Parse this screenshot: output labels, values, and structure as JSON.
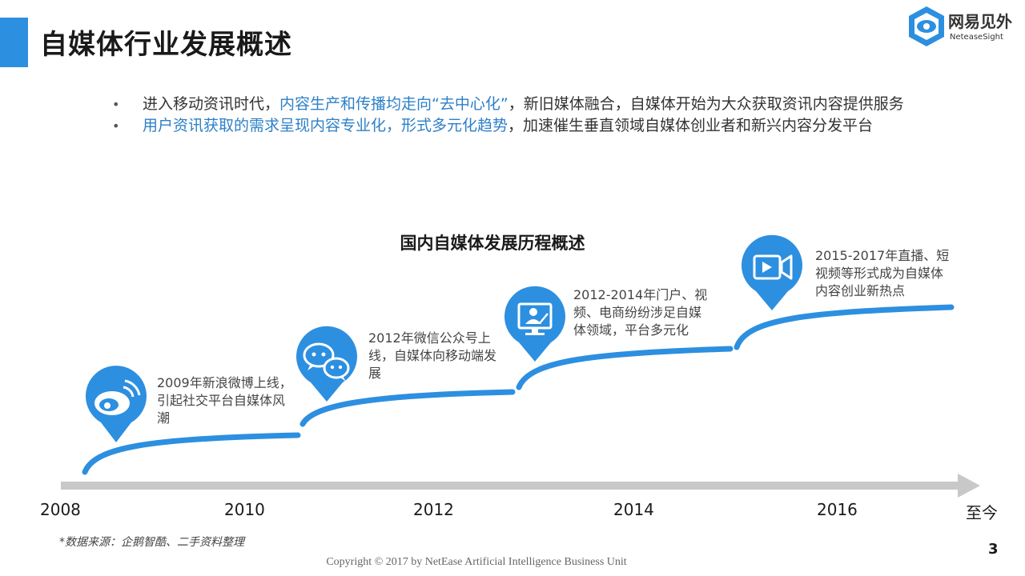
{
  "header": {
    "title": "自媒体行业发展概述",
    "logo_cn": "网易见外",
    "logo_en": "NeteaseSight"
  },
  "bullets": [
    {
      "dot": "•",
      "parts": [
        {
          "text": "进入移动资讯时代，",
          "highlight": false
        },
        {
          "text": "内容生产和传播均走向“去中心化”",
          "highlight": true
        },
        {
          "text": "，新旧媒体融合，自媒体开始为大众获取资讯内容提供服务",
          "highlight": false
        }
      ]
    },
    {
      "dot": "•",
      "parts": [
        {
          "text": "用户资讯获取的需求呈现内容专业化，形式多元化趋势",
          "highlight": true
        },
        {
          "text": "，加速催生垂直领域自媒体创业者和新兴内容分发平台",
          "highlight": false
        }
      ]
    }
  ],
  "timeline": {
    "title": "国内自媒体发展历程概述",
    "axis_labels": [
      "2008",
      "2010",
      "2012",
      "2014",
      "2016",
      "至今"
    ],
    "events": [
      {
        "icon": "weibo-icon",
        "text": "2009年新浪微博上线，引起社交平台自媒体风潮"
      },
      {
        "icon": "wechat-icon",
        "text": "2012年微信公众号上线，自媒体向移动端发展"
      },
      {
        "icon": "monitor-user-icon",
        "text": "2012-2014年门户、视频、电商纷纷涉足自媒体领域，平台多元化"
      },
      {
        "icon": "video-camera-icon",
        "text": "2015-2017年直播、短视频等形式成为自媒体内容创业新热点"
      }
    ]
  },
  "footer": {
    "source": "*数据来源：企鹅智酷、二手资料整理",
    "page_number": "3",
    "copyright": "Copyright © 2017 by NetEase Artificial Intelligence Business Unit"
  },
  "colors": {
    "accent": "#2d8fe0",
    "highlight_text": "#2d7fc8",
    "axis": "#c8c8c8"
  }
}
